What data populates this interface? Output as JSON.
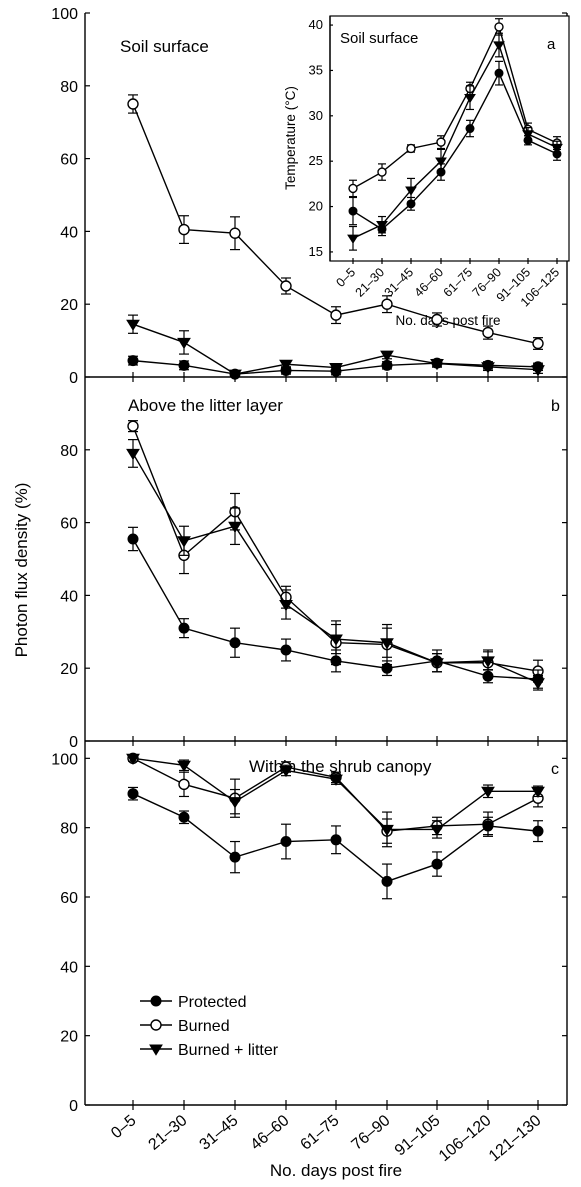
{
  "figure": {
    "ylabel": "Photon flux density (%)",
    "xlabel": "No. days post fire",
    "x_ticks": [
      "0–5",
      "21–30",
      "31–45",
      "46–60",
      "61–75",
      "76–90",
      "91–105",
      "106–120",
      "121–130"
    ],
    "legend": [
      "Protected",
      "Burned",
      "Burned + litter"
    ]
  },
  "chart_data": [
    {
      "type": "line",
      "panel": "soil-surface",
      "title": "Soil surface",
      "letter": "",
      "ylim": [
        0,
        100
      ],
      "yticks": [
        0,
        20,
        40,
        60,
        80,
        100
      ],
      "categories": [
        "0–5",
        "21–30",
        "31–45",
        "46–60",
        "61–75",
        "76–90",
        "91–105",
        "106–120",
        "121–130"
      ],
      "series": [
        {
          "name": "Protected",
          "marker": "circle-filled",
          "values": [
            4.5,
            3.2,
            0.8,
            1.8,
            1.6,
            3.2,
            3.8,
            3.2,
            2.8
          ],
          "errors": [
            1.2,
            1.2,
            0.5,
            1.0,
            1.0,
            1.0,
            1.0,
            1.0,
            1.0
          ]
        },
        {
          "name": "Burned",
          "marker": "circle-open",
          "values": [
            75,
            40.5,
            39.5,
            25,
            17,
            20,
            15.8,
            12.2,
            9.2
          ],
          "errors": [
            2.5,
            3.8,
            4.5,
            2.2,
            2.3,
            2.3,
            1.8,
            1.8,
            1.6
          ]
        },
        {
          "name": "Burned + litter",
          "marker": "triangle-down",
          "values": [
            14.5,
            9.5,
            0.8,
            3.5,
            2.6,
            6.0,
            3.7,
            2.8,
            2.0
          ],
          "errors": [
            2.5,
            3.2,
            0.5,
            1.0,
            1.0,
            1.0,
            1.0,
            1.0,
            1.0
          ]
        }
      ]
    },
    {
      "type": "line",
      "panel": "above-litter",
      "title": "Above the litter layer",
      "letter": "b",
      "ylim": [
        0,
        100
      ],
      "yticks": [
        0,
        20,
        40,
        60,
        80
      ],
      "categories": [
        "0–5",
        "21–30",
        "31–45",
        "46–60",
        "61–75",
        "76–90",
        "91–105",
        "106–120",
        "121–130"
      ],
      "series": [
        {
          "name": "Protected",
          "marker": "circle-filled",
          "values": [
            55.5,
            31,
            27,
            25,
            22,
            20,
            22,
            17.8,
            17
          ],
          "errors": [
            3.2,
            2.6,
            4.0,
            3.0,
            3.0,
            2.0,
            3.0,
            1.8,
            2.5
          ]
        },
        {
          "name": "Burned",
          "marker": "circle-open",
          "values": [
            86.5,
            51,
            63,
            39.5,
            27,
            26.5,
            21.5,
            21.5,
            19.2
          ],
          "errors": [
            1.5,
            5.0,
            5.0,
            3.0,
            6.0,
            5.5,
            2.5,
            3.5,
            3.0
          ]
        },
        {
          "name": "Burned + litter",
          "marker": "triangle-down",
          "values": [
            79,
            55,
            59,
            37.5,
            28,
            27,
            21.5,
            22,
            16
          ],
          "errors": [
            3.8,
            4.0,
            5.0,
            4.0,
            4.0,
            4.0,
            2.5,
            2.5,
            2.0
          ]
        }
      ]
    },
    {
      "type": "line",
      "panel": "shrub-canopy",
      "title": "Within the shrub canopy",
      "letter": "c",
      "ylim": [
        0,
        105
      ],
      "yticks": [
        0,
        20,
        40,
        60,
        80,
        100
      ],
      "categories": [
        "0–5",
        "21–30",
        "31–45",
        "46–60",
        "61–75",
        "76–90",
        "91–105",
        "106–120",
        "121–130"
      ],
      "series": [
        {
          "name": "Protected",
          "marker": "circle-filled",
          "values": [
            89.8,
            83,
            71.5,
            76,
            76.5,
            64.5,
            69.5,
            80.5,
            79
          ],
          "errors": [
            1.8,
            1.8,
            4.5,
            5.0,
            4.0,
            5.0,
            3.5,
            2.5,
            3.0
          ]
        },
        {
          "name": "Burned",
          "marker": "circle-open",
          "values": [
            100,
            92.5,
            88.5,
            97.5,
            94.5,
            79,
            80.5,
            81,
            88.5
          ],
          "errors": [
            0.8,
            3.5,
            5.5,
            1.5,
            1.5,
            3.5,
            2.5,
            3.5,
            2.5
          ]
        },
        {
          "name": "Burned + litter",
          "marker": "triangle-down",
          "values": [
            100,
            98,
            87.5,
            96.5,
            94,
            79.5,
            79.5,
            90.5,
            90.5
          ],
          "errors": [
            0.8,
            1.5,
            3.5,
            1.5,
            1.5,
            5.0,
            2.5,
            1.8,
            1.5
          ]
        }
      ]
    },
    {
      "type": "line",
      "panel": "inset-temperature",
      "title": "Soil surface",
      "letter": "a",
      "xlabel": "No. days post fire",
      "ylabel": "Temperature (°C)",
      "ylim": [
        14,
        41
      ],
      "yticks": [
        15,
        20,
        25,
        30,
        35,
        40
      ],
      "categories": [
        "0–5",
        "21–30",
        "31–45",
        "46–60",
        "61–75",
        "76–90",
        "91–105",
        "106–125"
      ],
      "series": [
        {
          "name": "Burned",
          "marker": "circle-open",
          "values": [
            22,
            23.8,
            26.4,
            27.1,
            33,
            39.8,
            28.5,
            27
          ],
          "errors": [
            0.9,
            0.9,
            0.4,
            0.7,
            0.7,
            0.9,
            0.7,
            0.7
          ]
        },
        {
          "name": "Burned + litter",
          "marker": "triangle-down",
          "values": [
            16.5,
            18,
            21.8,
            25,
            32,
            37.8,
            28,
            26.5
          ],
          "errors": [
            1.3,
            0.9,
            1.3,
            1.3,
            1.3,
            1.3,
            0.7,
            0.7
          ]
        },
        {
          "name": "Protected",
          "marker": "circle-filled",
          "values": [
            19.5,
            17.5,
            20.3,
            23.8,
            28.6,
            34.7,
            27.3,
            25.8
          ],
          "errors": [
            1.5,
            0.7,
            0.7,
            0.9,
            0.9,
            1.3,
            0.5,
            0.7
          ]
        }
      ]
    }
  ]
}
